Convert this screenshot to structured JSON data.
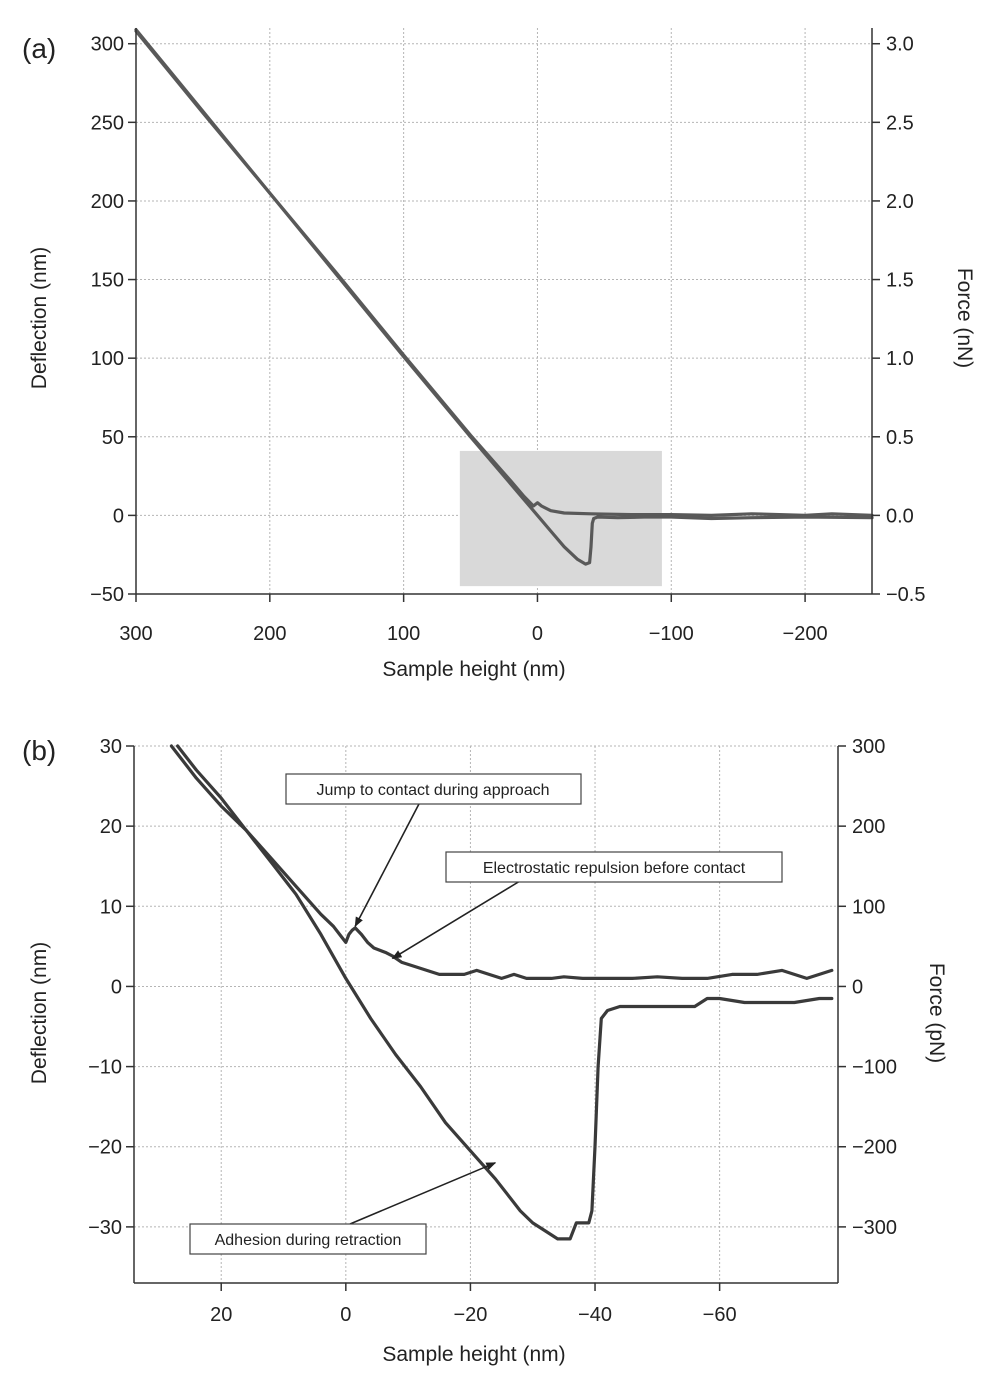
{
  "chart_data": [
    {
      "type": "line",
      "panel_label": "(a)",
      "xlabel": "Sample height (nm)",
      "ylabel": "Deflection (nm)",
      "y2label": "Force (nN)",
      "xlim": [
        300,
        -250
      ],
      "ylim": [
        -50,
        310
      ],
      "y2lim": [
        -0.5,
        3.1
      ],
      "xticks": [
        300,
        200,
        100,
        0,
        -100,
        -200
      ],
      "xticklabels": [
        "300",
        "200",
        "100",
        "0",
        "−100",
        "−200"
      ],
      "yticks": [
        300,
        250,
        200,
        150,
        100,
        50,
        0,
        -50
      ],
      "yticklabels": [
        "300",
        "250",
        "200",
        "150",
        "100",
        "50",
        "0",
        "−50"
      ],
      "y2ticks": [
        3.0,
        2.5,
        2.0,
        1.5,
        1.0,
        0.5,
        0.0,
        -0.5
      ],
      "y2ticklabels": [
        "3.0",
        "2.5",
        "2.0",
        "1.5",
        "1.0",
        "0.5",
        "0.0",
        "−0.5"
      ],
      "grid": true,
      "highlight_region": {
        "x": [
          58,
          -93
        ],
        "y": [
          -45,
          41
        ],
        "color": "#d9d9d9"
      },
      "series": [
        {
          "color": "#595959",
          "x": [
            300,
            250,
            200,
            150,
            100,
            50,
            20,
            10,
            3,
            0,
            -3,
            -10,
            -20,
            -40,
            -70,
            -100,
            -130,
            -160,
            -200,
            -220,
            -250
          ],
          "y": [
            309,
            257,
            205,
            154,
            102,
            51,
            22,
            12,
            6,
            8,
            6,
            3,
            1.5,
            1,
            0.5,
            0.5,
            0,
            1,
            0,
            1,
            0
          ]
        },
        {
          "color": "#595959",
          "x": [
            300,
            250,
            200,
            150,
            100,
            50,
            20,
            10,
            0,
            -10,
            -20,
            -30,
            -36,
            -39,
            -40,
            -41,
            -42,
            -45,
            -60,
            -80,
            -100,
            -130,
            -160,
            -200,
            -250
          ],
          "y": [
            308,
            256,
            205,
            153,
            101,
            50,
            20,
            10,
            0,
            -10,
            -20,
            -28,
            -31,
            -30,
            -20,
            -5,
            -2,
            -1,
            -1.5,
            -1,
            -1,
            -2,
            -1.5,
            -1,
            -1.5
          ]
        }
      ]
    },
    {
      "type": "line",
      "panel_label": "(b)",
      "xlabel": "Sample height (nm)",
      "ylabel": "Deflection (nm)",
      "y2label": "Force (pN)",
      "xlim": [
        34,
        -79
      ],
      "ylim": [
        -37,
        30
      ],
      "y2lim": [
        -370,
        300
      ],
      "xticks": [
        20,
        0,
        -20,
        -40,
        -60
      ],
      "xticklabels": [
        "20",
        "0",
        "−20",
        "−40",
        "−60"
      ],
      "yticks": [
        30,
        20,
        10,
        0,
        -10,
        -20,
        -30
      ],
      "yticklabels": [
        "30",
        "20",
        "10",
        "0",
        "−10",
        "−20",
        "−30"
      ],
      "y2ticks": [
        300,
        200,
        100,
        0,
        -100,
        -200,
        -300
      ],
      "y2ticklabels": [
        "300",
        "200",
        "100",
        "0",
        "−100",
        "−200",
        "−300"
      ],
      "grid": true,
      "annotations": [
        {
          "text": "Jump to contact during approach",
          "arrow_to": [
            -1.5,
            7.5
          ]
        },
        {
          "text": "Electrostatic repulsion before contact",
          "arrow_to": [
            -7.5,
            3.5
          ]
        },
        {
          "text": "Adhesion during retraction",
          "arrow_to": [
            -24,
            -22
          ]
        }
      ],
      "series": [
        {
          "color": "#3a3a3a",
          "x": [
            28,
            24,
            20,
            16,
            12,
            8,
            4,
            2,
            1,
            0,
            -0.5,
            -1,
            -1.5,
            -2.5,
            -3.5,
            -4.5,
            -5.5,
            -6.5,
            -7.5,
            -9,
            -11,
            -13,
            -15,
            -17,
            -19,
            -21,
            -23,
            -25,
            -27,
            -29,
            -31,
            -33,
            -35,
            -38,
            -42,
            -46,
            -50,
            -54,
            -58,
            -62,
            -66,
            -70,
            -74,
            -78
          ],
          "y": [
            30,
            26,
            22.5,
            19.5,
            16,
            12.5,
            9,
            7.5,
            6.5,
            5.5,
            6.5,
            7,
            7.3,
            6.5,
            5.5,
            4.8,
            4.5,
            4.2,
            3.8,
            3,
            2.5,
            2,
            1.5,
            1.5,
            1.5,
            2,
            1.5,
            1,
            1.5,
            1,
            1,
            1,
            1.2,
            1,
            1,
            1,
            1.2,
            1,
            1,
            1.5,
            1.5,
            2,
            1,
            2
          ]
        },
        {
          "color": "#3a3a3a",
          "x": [
            27,
            24,
            20,
            16,
            12,
            8,
            4,
            0,
            -4,
            -8,
            -12,
            -16,
            -20,
            -24,
            -26,
            -28,
            -30,
            -32,
            -33,
            -34,
            -35,
            -36,
            -37,
            -38,
            -39,
            -39.5,
            -40,
            -40.5,
            -41,
            -42,
            -44,
            -48,
            -52,
            -56,
            -58,
            -60,
            -64,
            -68,
            -72,
            -76,
            -78
          ],
          "y": [
            30,
            27,
            23.5,
            19.5,
            15.5,
            11.5,
            6.5,
            1,
            -4,
            -8.5,
            -12.5,
            -17,
            -20.5,
            -24,
            -26,
            -28,
            -29.5,
            -30.5,
            -31,
            -31.5,
            -31.5,
            -31.5,
            -29.5,
            -29.5,
            -29.5,
            -28,
            -20,
            -10,
            -4,
            -3,
            -2.5,
            -2.5,
            -2.5,
            -2.5,
            -1.5,
            -1.5,
            -2,
            -2,
            -2,
            -1.5,
            -1.5
          ]
        }
      ]
    }
  ]
}
